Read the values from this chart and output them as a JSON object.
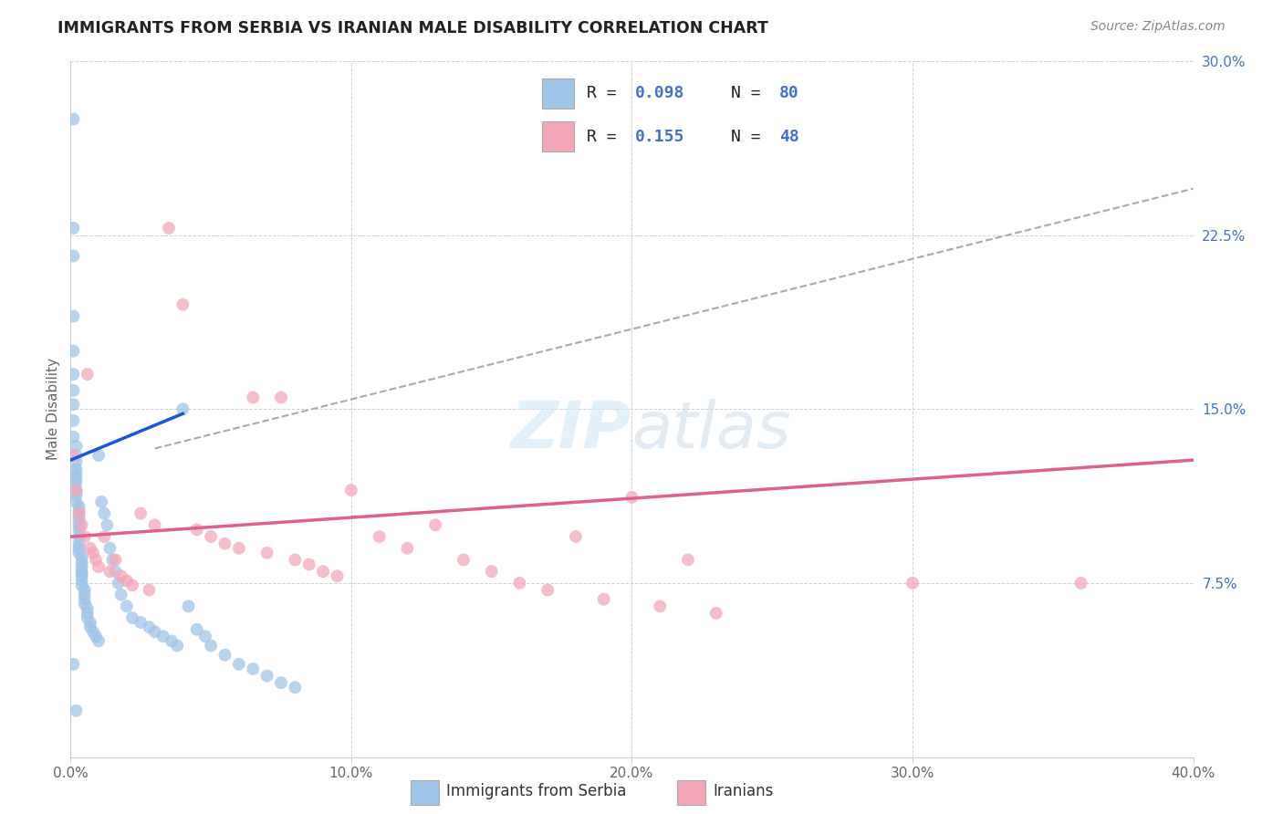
{
  "title": "IMMIGRANTS FROM SERBIA VS IRANIAN MALE DISABILITY CORRELATION CHART",
  "source": "Source: ZipAtlas.com",
  "ylabel": "Male Disability",
  "xlim": [
    0.0,
    0.4
  ],
  "ylim": [
    0.0,
    0.3
  ],
  "xticks": [
    0.0,
    0.1,
    0.2,
    0.3,
    0.4
  ],
  "xticklabels": [
    "0.0%",
    "10.0%",
    "20.0%",
    "30.0%",
    "40.0%"
  ],
  "yticks": [
    0.0,
    0.075,
    0.15,
    0.225,
    0.3
  ],
  "yticklabels": [
    "",
    "7.5%",
    "15.0%",
    "22.5%",
    "30.0%"
  ],
  "serbia_color": "#9fc5e8",
  "iran_color": "#f4a7b9",
  "serbia_line_color": "#1a56db",
  "iran_line_color": "#e06090",
  "trend_line_color": "#aaaaaa",
  "background_color": "#ffffff",
  "grid_color": "#cccccc",
  "legend_R1": "R = 0.098",
  "legend_N1": "N = 80",
  "legend_R2": "R =  0.155",
  "legend_N2": "N = 48",
  "legend_color": "#4472c4",
  "watermark": "ZIPatlas",
  "legend_label1": "Immigrants from Serbia",
  "legend_label2": "Iranians",
  "serbia_line_x": [
    0.0,
    0.04
  ],
  "serbia_line_y": [
    0.128,
    0.148
  ],
  "iran_line_x": [
    0.0,
    0.4
  ],
  "iran_line_y": [
    0.095,
    0.128
  ],
  "dash_line_x": [
    0.03,
    0.4
  ],
  "dash_line_y": [
    0.133,
    0.245
  ],
  "serbia_x": [
    0.001,
    0.001,
    0.001,
    0.001,
    0.001,
    0.001,
    0.001,
    0.001,
    0.001,
    0.001,
    0.002,
    0.002,
    0.002,
    0.002,
    0.002,
    0.002,
    0.002,
    0.002,
    0.002,
    0.002,
    0.003,
    0.003,
    0.003,
    0.003,
    0.003,
    0.003,
    0.003,
    0.003,
    0.003,
    0.003,
    0.004,
    0.004,
    0.004,
    0.004,
    0.004,
    0.004,
    0.004,
    0.004,
    0.005,
    0.005,
    0.005,
    0.005,
    0.006,
    0.006,
    0.006,
    0.007,
    0.007,
    0.008,
    0.009,
    0.01,
    0.01,
    0.011,
    0.012,
    0.013,
    0.014,
    0.015,
    0.016,
    0.017,
    0.018,
    0.02,
    0.022,
    0.025,
    0.028,
    0.03,
    0.033,
    0.036,
    0.038,
    0.04,
    0.042,
    0.045,
    0.048,
    0.05,
    0.055,
    0.06,
    0.065,
    0.07,
    0.075,
    0.08,
    0.001,
    0.002
  ],
  "serbia_y": [
    0.275,
    0.228,
    0.216,
    0.19,
    0.175,
    0.165,
    0.158,
    0.152,
    0.145,
    0.138,
    0.134,
    0.13,
    0.127,
    0.124,
    0.122,
    0.12,
    0.118,
    0.115,
    0.113,
    0.11,
    0.108,
    0.106,
    0.104,
    0.102,
    0.1,
    0.098,
    0.095,
    0.092,
    0.09,
    0.088,
    0.086,
    0.084,
    0.082,
    0.08,
    0.079,
    0.078,
    0.076,
    0.074,
    0.072,
    0.07,
    0.068,
    0.066,
    0.064,
    0.062,
    0.06,
    0.058,
    0.056,
    0.054,
    0.052,
    0.05,
    0.13,
    0.11,
    0.105,
    0.1,
    0.09,
    0.085,
    0.08,
    0.075,
    0.07,
    0.065,
    0.06,
    0.058,
    0.056,
    0.054,
    0.052,
    0.05,
    0.048,
    0.15,
    0.065,
    0.055,
    0.052,
    0.048,
    0.044,
    0.04,
    0.038,
    0.035,
    0.032,
    0.03,
    0.04,
    0.02
  ],
  "iran_x": [
    0.001,
    0.002,
    0.003,
    0.004,
    0.005,
    0.006,
    0.007,
    0.008,
    0.009,
    0.01,
    0.012,
    0.014,
    0.016,
    0.018,
    0.02,
    0.022,
    0.025,
    0.028,
    0.03,
    0.035,
    0.04,
    0.045,
    0.05,
    0.055,
    0.06,
    0.065,
    0.07,
    0.075,
    0.08,
    0.085,
    0.09,
    0.095,
    0.1,
    0.11,
    0.12,
    0.13,
    0.14,
    0.15,
    0.16,
    0.17,
    0.18,
    0.19,
    0.2,
    0.21,
    0.22,
    0.23,
    0.3,
    0.36
  ],
  "iran_y": [
    0.13,
    0.115,
    0.105,
    0.1,
    0.095,
    0.165,
    0.09,
    0.088,
    0.085,
    0.082,
    0.095,
    0.08,
    0.085,
    0.078,
    0.076,
    0.074,
    0.105,
    0.072,
    0.1,
    0.228,
    0.195,
    0.098,
    0.095,
    0.092,
    0.09,
    0.155,
    0.088,
    0.155,
    0.085,
    0.083,
    0.08,
    0.078,
    0.115,
    0.095,
    0.09,
    0.1,
    0.085,
    0.08,
    0.075,
    0.072,
    0.095,
    0.068,
    0.112,
    0.065,
    0.085,
    0.062,
    0.075,
    0.075
  ]
}
